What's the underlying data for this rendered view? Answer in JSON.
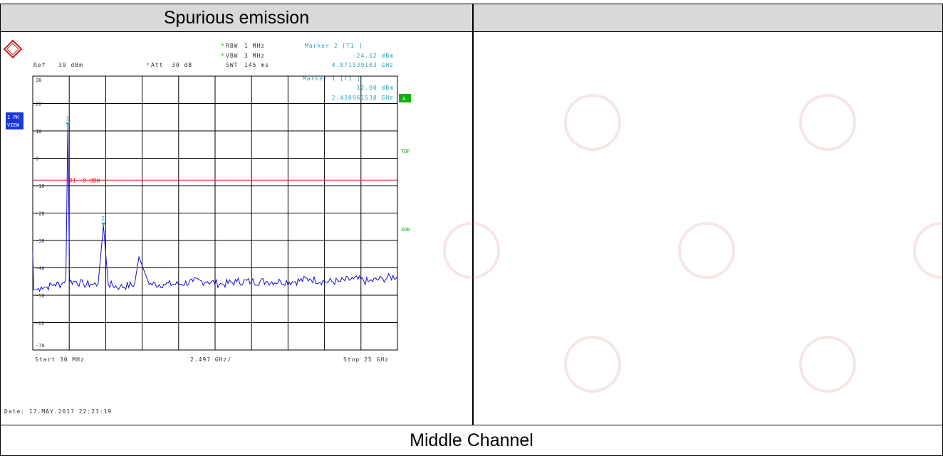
{
  "table": {
    "header_title": "Spurious emission",
    "footer_label": "Middle Channel"
  },
  "analyzer": {
    "logo_letters": "R&S",
    "ref_label": "Ref",
    "ref_value": "30 dBm",
    "att_label": "Att",
    "att_value": "30 dB",
    "rbw_label": "RBW",
    "rbw_value": "1 MHz",
    "vbw_label": "VBW",
    "vbw_value": "3 MHz",
    "swt_label": "SWT",
    "swt_value": "145 ms",
    "marker2_title": "Marker 2 [T1 ]",
    "marker2_level": "-24.52 dBm",
    "marker2_freq": "4.871939103 GHz",
    "marker1_title": "Marker 1 [T1 ]",
    "marker1_level": "12.00 dBm",
    "marker1_freq": "2.430961538 GHz",
    "trace_mode": "1 PK",
    "trace_view": "VIEW",
    "side_a": "A",
    "side_tdf": "TDF",
    "side_3db": "3DB",
    "limit_line_label": "D1  -8 dBm",
    "start_label": "Start  30 MHz",
    "span_label": "2.497 GHz/",
    "stop_label": "Stop  25 GHz",
    "date_label": "Date: 17.MAY.2017  22:23:19",
    "colors": {
      "trace": "#1010dd",
      "limit": "#e02020",
      "marker_text": "#2aa1b8",
      "green": "#10b010",
      "blue_box": "#1a3ad6"
    }
  },
  "chart_data": {
    "type": "line",
    "title": "",
    "xlabel": "",
    "ylabel": "",
    "xlim_mhz": [
      30,
      25000
    ],
    "ylim": [
      -70,
      30
    ],
    "grid": true,
    "y_ticks": [
      "30",
      "20",
      "10",
      "0",
      "-10",
      "-20",
      "-30",
      "-40",
      "-50",
      "-60",
      "-70"
    ],
    "limit_line": {
      "label": "D1  -8 dBm",
      "value": -8
    },
    "markers": [
      {
        "id": "1",
        "x_ghz": 2.430961538,
        "y_dbm": 12.0
      },
      {
        "id": "2",
        "x_ghz": 4.871939103,
        "y_dbm": -24.52
      }
    ],
    "series": [
      {
        "x_ghz": [
          0.03,
          0.1,
          0.3,
          0.6,
          1.0,
          1.5,
          2.0,
          2.3,
          2.43,
          2.55,
          3.0,
          3.5,
          4.0,
          4.5,
          4.87,
          5.2,
          6.0,
          7.0,
          7.3,
          8.0,
          9.0,
          10.0,
          11.0,
          12.0,
          13.0,
          14.0,
          15.0,
          16.0,
          17.0,
          18.0,
          19.0,
          20.0,
          21.0,
          22.0,
          23.0,
          24.0,
          25.0
        ],
        "y_dbm": [
          -35,
          -48,
          -48,
          -47,
          -47,
          -46,
          -46,
          -44,
          12.0,
          -45,
          -45,
          -46,
          -46,
          -46,
          -24.5,
          -46,
          -47,
          -46,
          -36,
          -46,
          -46,
          -46,
          -45,
          -45,
          -46,
          -45,
          -45,
          -45,
          -45,
          -45,
          -44,
          -45,
          -45,
          -44,
          -45,
          -44,
          -43
        ]
      }
    ]
  }
}
